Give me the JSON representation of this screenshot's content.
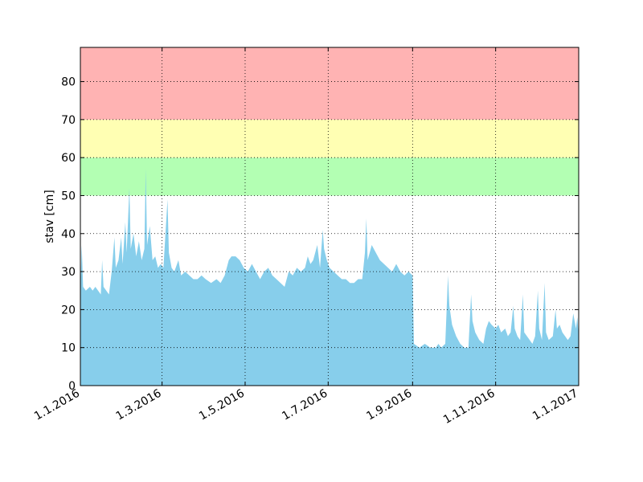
{
  "chart_data": {
    "type": "area",
    "title": "",
    "xlabel": "",
    "ylabel": "stav [cm]",
    "x_range": [
      "2016-01-01",
      "2017-01-01"
    ],
    "ylim": [
      0,
      89
    ],
    "y_ticks": [
      0,
      10,
      20,
      30,
      40,
      50,
      60,
      70,
      80
    ],
    "x_ticks": [
      {
        "date": "2016-01-01",
        "label": "1.1.2016"
      },
      {
        "date": "2016-03-01",
        "label": "1.3.2016"
      },
      {
        "date": "2016-05-01",
        "label": "1.5.2016"
      },
      {
        "date": "2016-07-01",
        "label": "1.7.2016"
      },
      {
        "date": "2016-09-01",
        "label": "1.9.2016"
      },
      {
        "date": "2016-11-01",
        "label": "1.11.2016"
      },
      {
        "date": "2017-01-01",
        "label": "1.1.2017"
      }
    ],
    "grid": true,
    "bands": [
      {
        "from": 50,
        "to": 60,
        "color": "#b3ffb3"
      },
      {
        "from": 60,
        "to": 70,
        "color": "#ffffb3"
      },
      {
        "from": 70,
        "to": 89,
        "color": "#ffb3b3"
      }
    ],
    "series": [
      {
        "color": "#87ceeb",
        "points": [
          [
            "2016-01-01",
            25
          ],
          [
            "2016-01-02",
            37
          ],
          [
            "2016-01-03",
            26
          ],
          [
            "2016-01-05",
            25
          ],
          [
            "2016-01-08",
            26
          ],
          [
            "2016-01-10",
            25
          ],
          [
            "2016-01-12",
            26
          ],
          [
            "2016-01-14",
            25
          ],
          [
            "2016-01-16",
            24
          ],
          [
            "2016-01-17",
            33
          ],
          [
            "2016-01-18",
            26
          ],
          [
            "2016-01-20",
            25
          ],
          [
            "2016-01-22",
            24
          ],
          [
            "2016-01-24",
            30
          ],
          [
            "2016-01-26",
            39
          ],
          [
            "2016-01-27",
            31
          ],
          [
            "2016-01-29",
            33
          ],
          [
            "2016-01-31",
            39
          ],
          [
            "2016-02-01",
            32
          ],
          [
            "2016-02-03",
            43
          ],
          [
            "2016-02-04",
            35
          ],
          [
            "2016-02-06",
            52
          ],
          [
            "2016-02-07",
            36
          ],
          [
            "2016-02-09",
            40
          ],
          [
            "2016-02-11",
            34
          ],
          [
            "2016-02-13",
            38
          ],
          [
            "2016-02-15",
            33
          ],
          [
            "2016-02-17",
            36
          ],
          [
            "2016-02-18",
            57
          ],
          [
            "2016-02-19",
            37
          ],
          [
            "2016-02-21",
            42
          ],
          [
            "2016-02-23",
            33
          ],
          [
            "2016-02-25",
            34
          ],
          [
            "2016-02-27",
            31
          ],
          [
            "2016-02-29",
            32
          ],
          [
            "2016-03-02",
            31
          ],
          [
            "2016-03-05",
            49
          ],
          [
            "2016-03-06",
            35
          ],
          [
            "2016-03-08",
            31
          ],
          [
            "2016-03-10",
            30
          ],
          [
            "2016-03-13",
            33
          ],
          [
            "2016-03-15",
            29
          ],
          [
            "2016-03-18",
            30
          ],
          [
            "2016-03-21",
            29
          ],
          [
            "2016-03-24",
            28
          ],
          [
            "2016-03-27",
            28
          ],
          [
            "2016-03-30",
            29
          ],
          [
            "2016-04-02",
            28
          ],
          [
            "2016-04-06",
            27
          ],
          [
            "2016-04-10",
            28
          ],
          [
            "2016-04-13",
            27
          ],
          [
            "2016-04-16",
            29
          ],
          [
            "2016-04-19",
            33
          ],
          [
            "2016-04-21",
            34
          ],
          [
            "2016-04-24",
            34
          ],
          [
            "2016-04-27",
            33
          ],
          [
            "2016-04-30",
            31
          ],
          [
            "2016-05-03",
            30
          ],
          [
            "2016-05-06",
            32
          ],
          [
            "2016-05-09",
            30
          ],
          [
            "2016-05-12",
            28
          ],
          [
            "2016-05-15",
            30
          ],
          [
            "2016-05-18",
            31
          ],
          [
            "2016-05-21",
            29
          ],
          [
            "2016-05-24",
            28
          ],
          [
            "2016-05-27",
            27
          ],
          [
            "2016-05-30",
            26
          ],
          [
            "2016-06-02",
            30
          ],
          [
            "2016-06-05",
            29
          ],
          [
            "2016-06-08",
            31
          ],
          [
            "2016-06-11",
            30
          ],
          [
            "2016-06-14",
            31
          ],
          [
            "2016-06-16",
            34
          ],
          [
            "2016-06-18",
            32
          ],
          [
            "2016-06-20",
            33
          ],
          [
            "2016-06-23",
            37
          ],
          [
            "2016-06-25",
            31
          ],
          [
            "2016-06-27",
            41
          ],
          [
            "2016-06-28",
            36
          ],
          [
            "2016-06-30",
            33
          ],
          [
            "2016-07-02",
            31
          ],
          [
            "2016-07-05",
            30
          ],
          [
            "2016-07-08",
            29
          ],
          [
            "2016-07-11",
            28
          ],
          [
            "2016-07-14",
            28
          ],
          [
            "2016-07-17",
            27
          ],
          [
            "2016-07-20",
            27
          ],
          [
            "2016-07-23",
            28
          ],
          [
            "2016-07-26",
            28
          ],
          [
            "2016-07-28",
            35
          ],
          [
            "2016-07-29",
            44
          ],
          [
            "2016-07-30",
            33
          ],
          [
            "2016-08-02",
            37
          ],
          [
            "2016-08-05",
            35
          ],
          [
            "2016-08-08",
            33
          ],
          [
            "2016-08-11",
            32
          ],
          [
            "2016-08-14",
            31
          ],
          [
            "2016-08-17",
            30
          ],
          [
            "2016-08-20",
            32
          ],
          [
            "2016-08-23",
            30
          ],
          [
            "2016-08-26",
            29
          ],
          [
            "2016-08-29",
            30
          ],
          [
            "2016-09-01",
            29
          ],
          [
            "2016-09-02",
            11
          ],
          [
            "2016-09-06",
            10
          ],
          [
            "2016-09-10",
            11
          ],
          [
            "2016-09-14",
            10
          ],
          [
            "2016-09-18",
            10
          ],
          [
            "2016-09-20",
            11
          ],
          [
            "2016-09-22",
            10
          ],
          [
            "2016-09-25",
            11
          ],
          [
            "2016-09-27",
            29
          ],
          [
            "2016-09-28",
            21
          ],
          [
            "2016-09-30",
            16
          ],
          [
            "2016-10-03",
            13
          ],
          [
            "2016-10-06",
            11
          ],
          [
            "2016-10-09",
            10
          ],
          [
            "2016-10-12",
            10
          ],
          [
            "2016-10-14",
            24
          ],
          [
            "2016-10-15",
            17
          ],
          [
            "2016-10-17",
            14
          ],
          [
            "2016-10-20",
            12
          ],
          [
            "2016-10-23",
            11
          ],
          [
            "2016-10-25",
            15
          ],
          [
            "2016-10-27",
            17
          ],
          [
            "2016-10-29",
            16
          ],
          [
            "2016-11-01",
            15
          ],
          [
            "2016-11-03",
            16
          ],
          [
            "2016-11-05",
            14
          ],
          [
            "2016-11-08",
            15
          ],
          [
            "2016-11-10",
            13
          ],
          [
            "2016-11-12",
            14
          ],
          [
            "2016-11-14",
            21
          ],
          [
            "2016-11-15",
            15
          ],
          [
            "2016-11-17",
            13
          ],
          [
            "2016-11-19",
            12
          ],
          [
            "2016-11-21",
            24
          ],
          [
            "2016-11-22",
            14
          ],
          [
            "2016-11-24",
            13
          ],
          [
            "2016-11-26",
            12
          ],
          [
            "2016-11-28",
            11
          ],
          [
            "2016-11-30",
            13
          ],
          [
            "2016-12-02",
            25
          ],
          [
            "2016-12-03",
            15
          ],
          [
            "2016-12-05",
            12
          ],
          [
            "2016-12-07",
            27
          ],
          [
            "2016-12-08",
            14
          ],
          [
            "2016-12-10",
            12
          ],
          [
            "2016-12-13",
            13
          ],
          [
            "2016-12-15",
            20
          ],
          [
            "2016-12-16",
            15
          ],
          [
            "2016-12-18",
            16
          ],
          [
            "2016-12-20",
            14
          ],
          [
            "2016-12-22",
            13
          ],
          [
            "2016-12-24",
            12
          ],
          [
            "2016-12-26",
            13
          ],
          [
            "2016-12-28",
            19
          ],
          [
            "2016-12-30",
            15
          ],
          [
            "2016-12-31",
            18
          ],
          [
            "2017-01-01",
            13
          ]
        ]
      }
    ]
  }
}
